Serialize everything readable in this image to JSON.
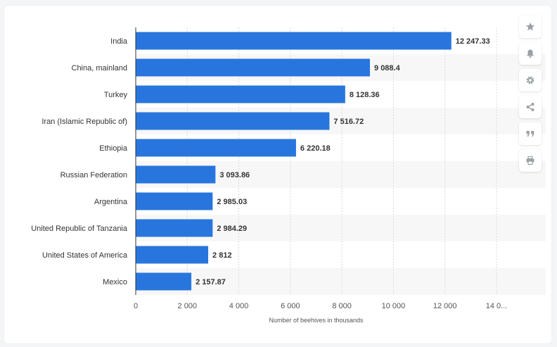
{
  "chart_data": {
    "type": "bar",
    "orientation": "horizontal",
    "categories": [
      "India",
      "China, mainland",
      "Turkey",
      "Iran (Islamic Republic of)",
      "Ethiopia",
      "Russian Federation",
      "Argentina",
      "United Republic of Tanzania",
      "United States of America",
      "Mexico"
    ],
    "values": [
      12247.33,
      9088.4,
      8128.36,
      7516.72,
      6220.18,
      3093.86,
      2985.03,
      2984.29,
      2812,
      2157.87
    ],
    "value_labels": [
      "12 247.33",
      "9 088.4",
      "8 128.36",
      "7 516.72",
      "6 220.18",
      "3 093.86",
      "2 985.03",
      "2 984.29",
      "2 812",
      "2 157.87"
    ],
    "xlabel": "Number of beehives in thousands",
    "ylabel": "",
    "xlim": [
      0,
      14000
    ],
    "ticks": [
      0,
      2000,
      4000,
      6000,
      8000,
      10000,
      12000,
      14000
    ],
    "tick_labels": [
      "0",
      "2 000",
      "4 000",
      "6 000",
      "8 000",
      "10 000",
      "12 000",
      "14 0..."
    ],
    "grid": true,
    "bar_color": "#2876dd",
    "stripe_color": "#f7f7f7"
  },
  "toolbar": {
    "buttons": [
      {
        "icon": "star-icon",
        "name": "favorite-button"
      },
      {
        "icon": "bell-icon",
        "name": "notification-button"
      },
      {
        "icon": "gear-icon",
        "name": "settings-button"
      },
      {
        "icon": "share-icon",
        "name": "share-button"
      },
      {
        "icon": "quote-icon",
        "name": "cite-button"
      },
      {
        "icon": "print-icon",
        "name": "print-button"
      }
    ]
  }
}
